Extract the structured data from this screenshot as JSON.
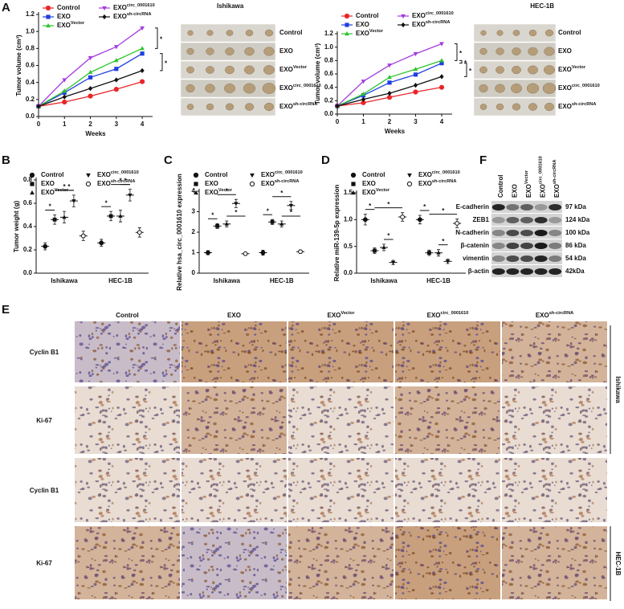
{
  "panel_labels": [
    "A",
    "B",
    "C",
    "D",
    "E",
    "F"
  ],
  "significance": "*",
  "chart_data": [
    {
      "type": "line",
      "x": [
        0,
        1,
        2,
        3,
        4
      ],
      "xlim": [
        0,
        4.4
      ],
      "xticks": [
        0,
        1,
        2,
        3,
        4
      ],
      "ylim": [
        0,
        1.2
      ],
      "yticks": [
        {
          "value": 0,
          "label": "0.0"
        },
        0.2,
        0.4,
        0.6,
        0.8,
        {
          "value": 1,
          "label": "1.0"
        },
        1.2
      ],
      "xlabel": "Weeks",
      "ylabel": "Tumor volume (cm³)",
      "series": [
        {
          "name": "Control",
          "color": "#e8262a",
          "marker": "circle",
          "values": [
            0.12,
            0.17,
            0.24,
            0.32,
            0.41
          ]
        },
        {
          "name": "EXO",
          "color": "#1f3fe0",
          "marker": "square",
          "values": [
            0.12,
            0.28,
            0.46,
            0.56,
            0.74
          ]
        },
        {
          "name": "EXO",
          "name_sup": "Vector",
          "color": "#2ec42e",
          "marker": "triangle",
          "values": [
            0.12,
            0.3,
            0.52,
            0.66,
            0.8
          ]
        },
        {
          "name": "EXO",
          "name_sup": "circ_0001610",
          "color": "#a43ce0",
          "marker": "tridown",
          "values": [
            0.12,
            0.43,
            0.69,
            0.82,
            1.04
          ]
        },
        {
          "name": "EXO",
          "name_sup": "sh-circRNA",
          "color": "#111111",
          "marker": "diamond",
          "values": [
            0.12,
            0.23,
            0.33,
            0.43,
            0.54
          ]
        }
      ]
    },
    {
      "type": "line",
      "x": [
        0,
        1,
        2,
        3,
        4
      ],
      "xlim": [
        0,
        4.4
      ],
      "xticks": [
        0,
        1,
        2,
        3,
        4
      ],
      "ylim": [
        0,
        1.2
      ],
      "yticks": [
        {
          "value": 0,
          "label": "0.0"
        },
        0.2,
        0.4,
        0.6,
        0.8,
        {
          "value": 1,
          "label": "1.0"
        },
        1.2
      ],
      "xlabel": "Weeks",
      "ylabel": "Tumor volume (cm³)",
      "series": [
        {
          "name": "Control",
          "color": "#e8262a",
          "marker": "circle",
          "values": [
            0.12,
            0.17,
            0.25,
            0.33,
            0.4
          ]
        },
        {
          "name": "EXO",
          "color": "#1f3fe0",
          "marker": "square",
          "values": [
            0.12,
            0.28,
            0.47,
            0.59,
            0.76
          ]
        },
        {
          "name": "EXO",
          "name_sup": "Vector",
          "color": "#2ec42e",
          "marker": "triangle",
          "values": [
            0.12,
            0.3,
            0.55,
            0.67,
            0.8
          ]
        },
        {
          "name": "EXO",
          "name_sup": "circ_0001610",
          "color": "#a43ce0",
          "marker": "tridown",
          "values": [
            0.12,
            0.49,
            0.73,
            0.9,
            1.05
          ]
        },
        {
          "name": "EXO",
          "name_sup": "sh-circRNA",
          "color": "#111111",
          "marker": "diamond",
          "values": [
            0.12,
            0.22,
            0.31,
            0.43,
            0.56
          ]
        }
      ]
    },
    {
      "type": "dot",
      "categories": [
        "Ishikawa",
        "HEC-1B"
      ],
      "ylim": [
        0,
        0.8
      ],
      "yticks": [
        {
          "value": 0,
          "label": "0.0"
        },
        0.2,
        0.4,
        0.6,
        0.8
      ],
      "ylabel": "Tumor weight (g)",
      "series": [
        {
          "name": "Control",
          "marker": "circle",
          "values": [
            0.23,
            0.26
          ],
          "errors": [
            0.03,
            0.03
          ]
        },
        {
          "name": "EXO",
          "marker": "square",
          "values": [
            0.46,
            0.49
          ],
          "errors": [
            0.04,
            0.04
          ]
        },
        {
          "name": "EXO",
          "name_sup": "Vector",
          "marker": "triangle",
          "values": [
            0.48,
            0.49
          ],
          "errors": [
            0.05,
            0.05
          ]
        },
        {
          "name": "EXO",
          "name_sup": "circ_0001610",
          "marker": "tridown",
          "values": [
            0.62,
            0.67
          ],
          "errors": [
            0.05,
            0.05
          ]
        },
        {
          "name": "EXO",
          "name_sup": "sh-circRNA",
          "marker": "opencircle",
          "values": [
            0.32,
            0.35
          ],
          "errors": [
            0.04,
            0.04
          ]
        }
      ]
    },
    {
      "type": "dot",
      "categories": [
        "Ishikawa",
        "HEC-1B"
      ],
      "ylim": [
        0,
        4
      ],
      "yticks": [
        0,
        1,
        2,
        3,
        4
      ],
      "ylabel": "Relative hsa_circ_0001610 expression",
      "series": [
        {
          "name": "Control",
          "marker": "circle",
          "values": [
            1.0,
            1.0
          ],
          "errors": [
            0.1,
            0.12
          ]
        },
        {
          "name": "EXO",
          "marker": "square",
          "values": [
            2.3,
            2.5
          ],
          "errors": [
            0.12,
            0.12
          ]
        },
        {
          "name": "EXO",
          "name_sup": "Vector",
          "marker": "triangle",
          "values": [
            2.4,
            2.4
          ],
          "errors": [
            0.15,
            0.15
          ]
        },
        {
          "name": "EXO",
          "name_sup": "circ_0001610",
          "marker": "tridown",
          "values": [
            3.4,
            3.3
          ],
          "errors": [
            0.2,
            0.2
          ]
        },
        {
          "name": "EXO",
          "name_sup": "sh-circRNA",
          "marker": "opencircle",
          "values": [
            0.95,
            1.05
          ],
          "errors": [
            0.06,
            0.08
          ]
        }
      ]
    },
    {
      "type": "dot",
      "categories": [
        "Ishikawa",
        "HEC-1B"
      ],
      "ylim": [
        0,
        1.5
      ],
      "yticks": [
        {
          "value": 0,
          "label": "0.0"
        },
        0.5,
        {
          "value": 1,
          "label": "1.0"
        },
        1.5
      ],
      "ylabel": "Relative miR-139-5p expression",
      "series": [
        {
          "name": "Control",
          "marker": "circle",
          "values": [
            1.0,
            1.0
          ],
          "errors": [
            0.1,
            0.08
          ]
        },
        {
          "name": "EXO",
          "marker": "square",
          "values": [
            0.42,
            0.38
          ],
          "errors": [
            0.05,
            0.05
          ]
        },
        {
          "name": "EXO",
          "name_sup": "Vector",
          "marker": "triangle",
          "values": [
            0.48,
            0.38
          ],
          "errors": [
            0.06,
            0.06
          ]
        },
        {
          "name": "EXO",
          "name_sup": "circ_0001610",
          "marker": "tridown",
          "values": [
            0.2,
            0.22
          ],
          "errors": [
            0.04,
            0.04
          ]
        },
        {
          "name": "EXO",
          "name_sup": "sh-circRNA",
          "marker": "opencircle",
          "values": [
            1.05,
            0.93
          ],
          "errors": [
            0.08,
            0.08
          ]
        }
      ]
    }
  ],
  "photos": [
    {
      "title": "Ishikawa",
      "rows": [
        {
          "name": "Control"
        },
        {
          "name": "EXO"
        },
        {
          "name": "EXO",
          "name_sup": "Vector"
        },
        {
          "name": "EXO",
          "name_sup": "circ_0001610"
        },
        {
          "name": "EXO",
          "name_sup": "sh-circRNA"
        }
      ]
    },
    {
      "title": "HEC-1B",
      "rows": [
        {
          "name": "Control"
        },
        {
          "name": "EXO"
        },
        {
          "name": "EXO",
          "name_sup": "Vector"
        },
        {
          "name": "EXO",
          "name_sup": "circ_0001610"
        },
        {
          "name": "EXO",
          "name_sup": "sh-circRNA"
        }
      ]
    }
  ],
  "blot": {
    "lanes": [
      {
        "name": "Control"
      },
      {
        "name": "EXO"
      },
      {
        "name": "EXO",
        "name_sup": "Vector"
      },
      {
        "name": "EXO",
        "name_sup": "circ_0001610"
      },
      {
        "name": "EXO",
        "name_sup": "sh-circRNA"
      }
    ],
    "rows": [
      {
        "protein": "E-cadherin",
        "size": "97 kDa"
      },
      {
        "protein": "ZEB1",
        "size": "124 kDa"
      },
      {
        "protein": "N-cadherin",
        "size": "100 kDa"
      },
      {
        "protein": "β-catenin",
        "size": "86 kDa"
      },
      {
        "protein": "vimentin",
        "size": "54 kDa"
      },
      {
        "protein": "β-actin",
        "size": "42kDa"
      }
    ]
  },
  "ihc": {
    "columns": [
      {
        "name": "Control"
      },
      {
        "name": "EXO"
      },
      {
        "name": "EXO",
        "name_sup": "Vector"
      },
      {
        "name": "EXO",
        "name_sup": "circ_0001610"
      },
      {
        "name": "EXO",
        "name_sup": "sh-circRNA"
      }
    ],
    "rows": [
      "Cyclin B1",
      "Ki-67",
      "Cyclin B1",
      "Ki-67"
    ],
    "cell_lines": [
      "Ishikawa",
      "HEC-1B"
    ]
  }
}
